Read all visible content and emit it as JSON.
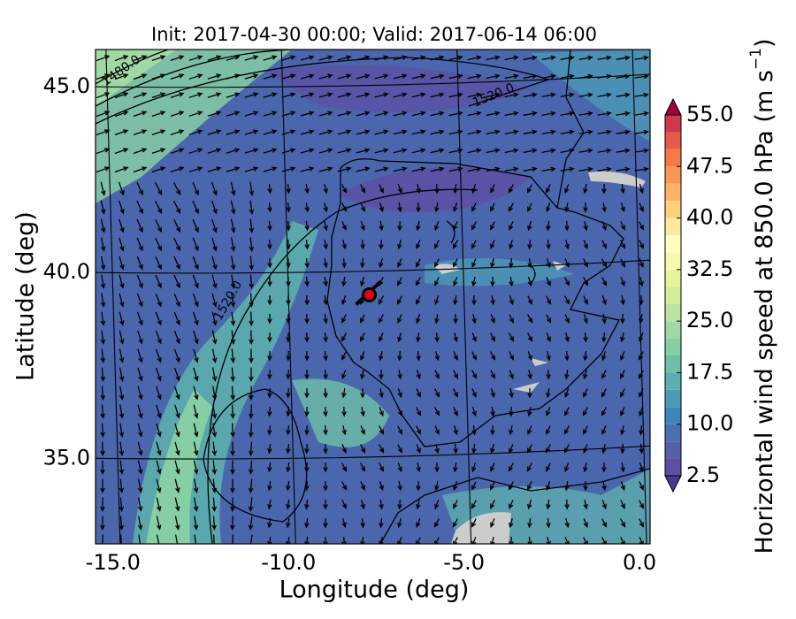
{
  "chart_data": {
    "type": "map",
    "title": "Init: 2017-04-30 00:00; Valid: 2017-06-14 06:00",
    "x_label": "Longitude (deg)",
    "y_label": "Latitude (deg)",
    "xlim": [
      -15.5,
      0.3
    ],
    "ylim": [
      32.7,
      46.0
    ],
    "xticks": [
      {
        "value": -15,
        "label": "-15.0"
      },
      {
        "value": -10,
        "label": "-10.0"
      },
      {
        "value": -5,
        "label": "-5.0"
      },
      {
        "value": 0,
        "label": "0.0"
      }
    ],
    "yticks": [
      {
        "value": 35,
        "label": "35.0"
      },
      {
        "value": 40,
        "label": "40.0"
      },
      {
        "value": 45,
        "label": "45.0"
      }
    ],
    "contour_labels": [
      "1480.0",
      "1520.0",
      "1520.0"
    ],
    "marker": {
      "x": -7.7,
      "y": 39.4,
      "color": "#e8001c"
    },
    "colorbar": {
      "label": "Horizontal wind speed at 850.0 hPa (m s",
      "label_sup": "−1",
      "label_end": ")",
      "lim": [
        2.5,
        55
      ],
      "levels": [
        2.5,
        5,
        7.5,
        10,
        12.5,
        15,
        17.5,
        20,
        22.5,
        25,
        27.5,
        30,
        32.5,
        35,
        37.5,
        40,
        42.5,
        45,
        47.5,
        50,
        52.5,
        55
      ],
      "colors": [
        "#5e4fa2",
        "#5460a8",
        "#4a72ae",
        "#3f86bc",
        "#4b9bb5",
        "#5caeae",
        "#6ebfa6",
        "#86cfa5",
        "#a0d9a4",
        "#bbe4a0",
        "#d3ee9b",
        "#e6f598",
        "#f3fab0",
        "#fffebe",
        "#fee89a",
        "#fed07e",
        "#fdb466",
        "#f99855",
        "#f47a48",
        "#e55a49",
        "#d0384e"
      ],
      "under_color": "#4a3a8f",
      "over_color": "#9e0142",
      "ticks": [
        2.5,
        {
          "value": 10,
          "label": "10.0"
        },
        {
          "value": 17.5,
          "label": "17.5"
        },
        {
          "value": 25,
          "label": "25.0"
        },
        {
          "value": 32.5,
          "label": "32.5"
        },
        {
          "value": 40,
          "label": "40.0"
        },
        {
          "value": 47.5,
          "label": "47.5"
        },
        {
          "value": 55,
          "label": "55.0"
        }
      ]
    }
  }
}
